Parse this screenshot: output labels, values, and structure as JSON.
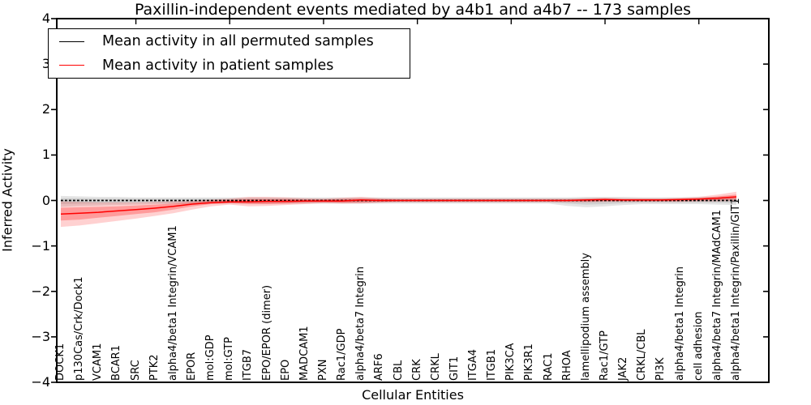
{
  "chart_data": {
    "type": "line",
    "title": "Paxillin-independent events mediated by a4b1 and a4b7 -- 173 samples",
    "xlabel": "Cellular Entities",
    "ylabel": "Inferred Activity",
    "ylim": [
      -4,
      4
    ],
    "grid": false,
    "legend_position": "upper left",
    "y_tick_values": [
      4,
      3,
      2,
      1,
      0,
      -1,
      -2,
      -3,
      -4
    ],
    "y_tick_labels": [
      "4",
      "3",
      "2",
      "1",
      "0",
      "−1",
      "−2",
      "−3",
      "−4"
    ],
    "x_major_tick_indices": [
      4,
      9,
      14,
      19,
      24,
      29,
      34
    ],
    "categories": [
      "DOCK1",
      "p130Cas/Crk/Dock1",
      "VCAM1",
      "BCAR1",
      "SRC",
      "PTK2",
      "alpha4/beta1 Integrin/VCAM1",
      "EPOR",
      "mol:GDP",
      "mol:GTP",
      "ITGB7",
      "EPO/EPOR (dimer)",
      "EPO",
      "MADCAM1",
      "PXN",
      "Rac1/GDP",
      "alpha4/beta7 Integrin",
      "ARF6",
      "CBL",
      "CRK",
      "CRKL",
      "GIT1",
      "ITGA4",
      "ITGB1",
      "PIK3CA",
      "PIK3R1",
      "RAC1",
      "RHOA",
      "lamellipodium assembly",
      "Rac1/GTP",
      "JAK2",
      "CRKL/CBL",
      "PI3K",
      "alpha4/beta1 Integrin",
      "cell adhesion",
      "alpha4/beta7 Integrin/MAdCAM1",
      "alpha4/beta1 Integrin/Paxillin/GIT1"
    ],
    "legend": {
      "entries": [
        {
          "label": "Mean activity in all permuted samples",
          "color": "#000000"
        },
        {
          "label": "Mean activity in patient samples",
          "color": "#ff0000"
        }
      ]
    },
    "series": [
      {
        "name": "Mean activity in all permuted samples",
        "color": "#000000",
        "style": "dashed",
        "values": [
          0,
          0,
          0,
          0,
          0,
          0,
          0,
          0,
          0,
          0,
          0,
          0,
          0,
          0,
          0,
          0,
          0,
          0,
          0,
          0,
          0,
          0,
          0,
          0,
          0,
          0,
          0,
          0,
          0,
          0,
          0,
          0,
          0,
          0,
          0,
          0,
          0
        ]
      },
      {
        "name": "Mean activity in patient samples",
        "color": "#ff0000",
        "style": "solid",
        "values": [
          -0.3,
          -0.28,
          -0.26,
          -0.23,
          -0.2,
          -0.17,
          -0.13,
          -0.08,
          -0.05,
          -0.03,
          -0.03,
          -0.02,
          -0.02,
          -0.01,
          -0.01,
          -0.01,
          0.01,
          0.0,
          0.0,
          0.0,
          0.0,
          0.0,
          0.0,
          0.0,
          0.0,
          0.0,
          0.0,
          0.0,
          0.01,
          0.02,
          0.01,
          0.01,
          0.01,
          0.02,
          0.03,
          0.05,
          0.08
        ]
      }
    ],
    "bands": [
      {
        "name": "permuted-band-outer",
        "color": "#a8a8a8",
        "opacity": 0.3,
        "upper": [
          0.1,
          0.09,
          0.08,
          0.08,
          0.07,
          0.07,
          0.07,
          0.07,
          0.07,
          0.07,
          0.07,
          0.07,
          0.07,
          0.07,
          0.07,
          0.07,
          0.07,
          0.07,
          0.07,
          0.07,
          0.07,
          0.07,
          0.07,
          0.07,
          0.07,
          0.07,
          0.07,
          0.07,
          0.08,
          0.08,
          0.08,
          0.07,
          0.07,
          0.07,
          0.08,
          0.08,
          0.09
        ],
        "lower": [
          -0.14,
          -0.12,
          -0.11,
          -0.1,
          -0.09,
          -0.08,
          -0.08,
          -0.08,
          -0.07,
          -0.07,
          -0.07,
          -0.07,
          -0.07,
          -0.07,
          -0.07,
          -0.07,
          -0.07,
          -0.07,
          -0.07,
          -0.07,
          -0.07,
          -0.07,
          -0.07,
          -0.07,
          -0.07,
          -0.07,
          -0.07,
          -0.12,
          -0.15,
          -0.13,
          -0.1,
          -0.08,
          -0.08,
          -0.08,
          -0.08,
          -0.09,
          -0.1
        ]
      },
      {
        "name": "permuted-band-inner",
        "color": "#a8a8a8",
        "opacity": 0.35,
        "upper": [
          0.05,
          0.05,
          0.04,
          0.04,
          0.04,
          0.04,
          0.04,
          0.04,
          0.04,
          0.04,
          0.04,
          0.04,
          0.04,
          0.04,
          0.04,
          0.04,
          0.04,
          0.04,
          0.04,
          0.04,
          0.04,
          0.04,
          0.04,
          0.04,
          0.04,
          0.04,
          0.04,
          0.04,
          0.05,
          0.05,
          0.04,
          0.04,
          0.04,
          0.04,
          0.04,
          0.05,
          0.05
        ],
        "lower": [
          -0.08,
          -0.07,
          -0.06,
          -0.06,
          -0.05,
          -0.05,
          -0.05,
          -0.05,
          -0.04,
          -0.04,
          -0.04,
          -0.04,
          -0.04,
          -0.04,
          -0.04,
          -0.04,
          -0.04,
          -0.04,
          -0.04,
          -0.04,
          -0.04,
          -0.04,
          -0.04,
          -0.04,
          -0.04,
          -0.04,
          -0.04,
          -0.07,
          -0.09,
          -0.08,
          -0.06,
          -0.05,
          -0.05,
          -0.05,
          -0.05,
          -0.05,
          -0.06
        ]
      },
      {
        "name": "patient-band-outer",
        "color": "#ff0000",
        "opacity": 0.18,
        "upper": [
          -0.02,
          -0.03,
          -0.04,
          -0.04,
          -0.04,
          -0.03,
          -0.02,
          -0.01,
          0.02,
          0.04,
          0.08,
          0.08,
          0.07,
          0.05,
          0.04,
          0.06,
          0.08,
          0.05,
          0.04,
          0.04,
          0.04,
          0.04,
          0.04,
          0.04,
          0.04,
          0.04,
          0.04,
          0.04,
          0.05,
          0.06,
          0.05,
          0.05,
          0.05,
          0.06,
          0.08,
          0.13,
          0.19
        ],
        "lower": [
          -0.58,
          -0.55,
          -0.5,
          -0.45,
          -0.4,
          -0.34,
          -0.28,
          -0.2,
          -0.13,
          -0.09,
          -0.13,
          -0.12,
          -0.1,
          -0.08,
          -0.06,
          -0.07,
          -0.07,
          -0.05,
          -0.04,
          -0.04,
          -0.04,
          -0.04,
          -0.04,
          -0.04,
          -0.04,
          -0.04,
          -0.04,
          -0.04,
          -0.04,
          -0.03,
          -0.03,
          -0.03,
          -0.03,
          -0.03,
          -0.02,
          -0.02,
          -0.01
        ]
      },
      {
        "name": "patient-band-inner",
        "color": "#ff0000",
        "opacity": 0.26,
        "upper": [
          -0.16,
          -0.15,
          -0.14,
          -0.13,
          -0.11,
          -0.09,
          -0.07,
          -0.04,
          -0.01,
          0.01,
          0.03,
          0.03,
          0.03,
          0.02,
          0.02,
          0.03,
          0.04,
          0.03,
          0.02,
          0.02,
          0.02,
          0.02,
          0.02,
          0.02,
          0.02,
          0.02,
          0.02,
          0.02,
          0.03,
          0.04,
          0.03,
          0.03,
          0.03,
          0.04,
          0.05,
          0.09,
          0.13
        ],
        "lower": [
          -0.44,
          -0.42,
          -0.38,
          -0.34,
          -0.3,
          -0.26,
          -0.2,
          -0.13,
          -0.08,
          -0.06,
          -0.08,
          -0.08,
          -0.07,
          -0.05,
          -0.04,
          -0.05,
          -0.04,
          -0.03,
          -0.02,
          -0.02,
          -0.02,
          -0.02,
          -0.02,
          -0.02,
          -0.02,
          -0.02,
          -0.02,
          -0.02,
          -0.02,
          -0.01,
          -0.01,
          -0.01,
          -0.01,
          -0.01,
          0.0,
          0.01,
          0.03
        ]
      }
    ]
  }
}
